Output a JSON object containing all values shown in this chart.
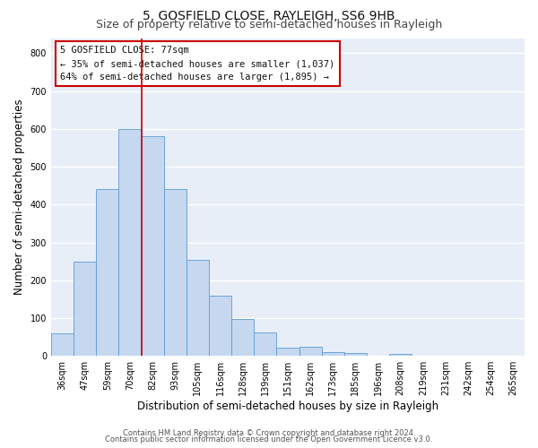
{
  "title": "5, GOSFIELD CLOSE, RAYLEIGH, SS6 9HB",
  "subtitle": "Size of property relative to semi-detached houses in Rayleigh",
  "xlabel": "Distribution of semi-detached houses by size in Rayleigh",
  "ylabel": "Number of semi-detached properties",
  "bin_labels": [
    "36sqm",
    "47sqm",
    "59sqm",
    "70sqm",
    "82sqm",
    "93sqm",
    "105sqm",
    "116sqm",
    "128sqm",
    "139sqm",
    "151sqm",
    "162sqm",
    "173sqm",
    "185sqm",
    "196sqm",
    "208sqm",
    "219sqm",
    "231sqm",
    "242sqm",
    "254sqm",
    "265sqm"
  ],
  "bar_heights": [
    60,
    250,
    440,
    600,
    580,
    440,
    255,
    160,
    97,
    62,
    22,
    25,
    10,
    8,
    0,
    5,
    0,
    0,
    0,
    0,
    0
  ],
  "bar_color": "#c5d8f0",
  "bar_edge_color": "#5b9bd5",
  "annotation_title": "5 GOSFIELD CLOSE: 77sqm",
  "annotation_line1": "← 35% of semi-detached houses are smaller (1,037)",
  "annotation_line2": "64% of semi-detached houses are larger (1,895) →",
  "annotation_box_color": "#ffffff",
  "annotation_box_edge_color": "#cc0000",
  "vline_color": "#cc0000",
  "ylim": [
    0,
    840
  ],
  "yticks": [
    0,
    100,
    200,
    300,
    400,
    500,
    600,
    700,
    800
  ],
  "footer_line1": "Contains HM Land Registry data © Crown copyright and database right 2024.",
  "footer_line2": "Contains public sector information licensed under the Open Government Licence v3.0.",
  "bg_color": "#ffffff",
  "plot_bg_color": "#e8eef8",
  "grid_color": "#ffffff",
  "title_fontsize": 10,
  "subtitle_fontsize": 9,
  "axis_label_fontsize": 8.5,
  "tick_fontsize": 7,
  "annotation_fontsize": 7.5,
  "footer_fontsize": 6
}
